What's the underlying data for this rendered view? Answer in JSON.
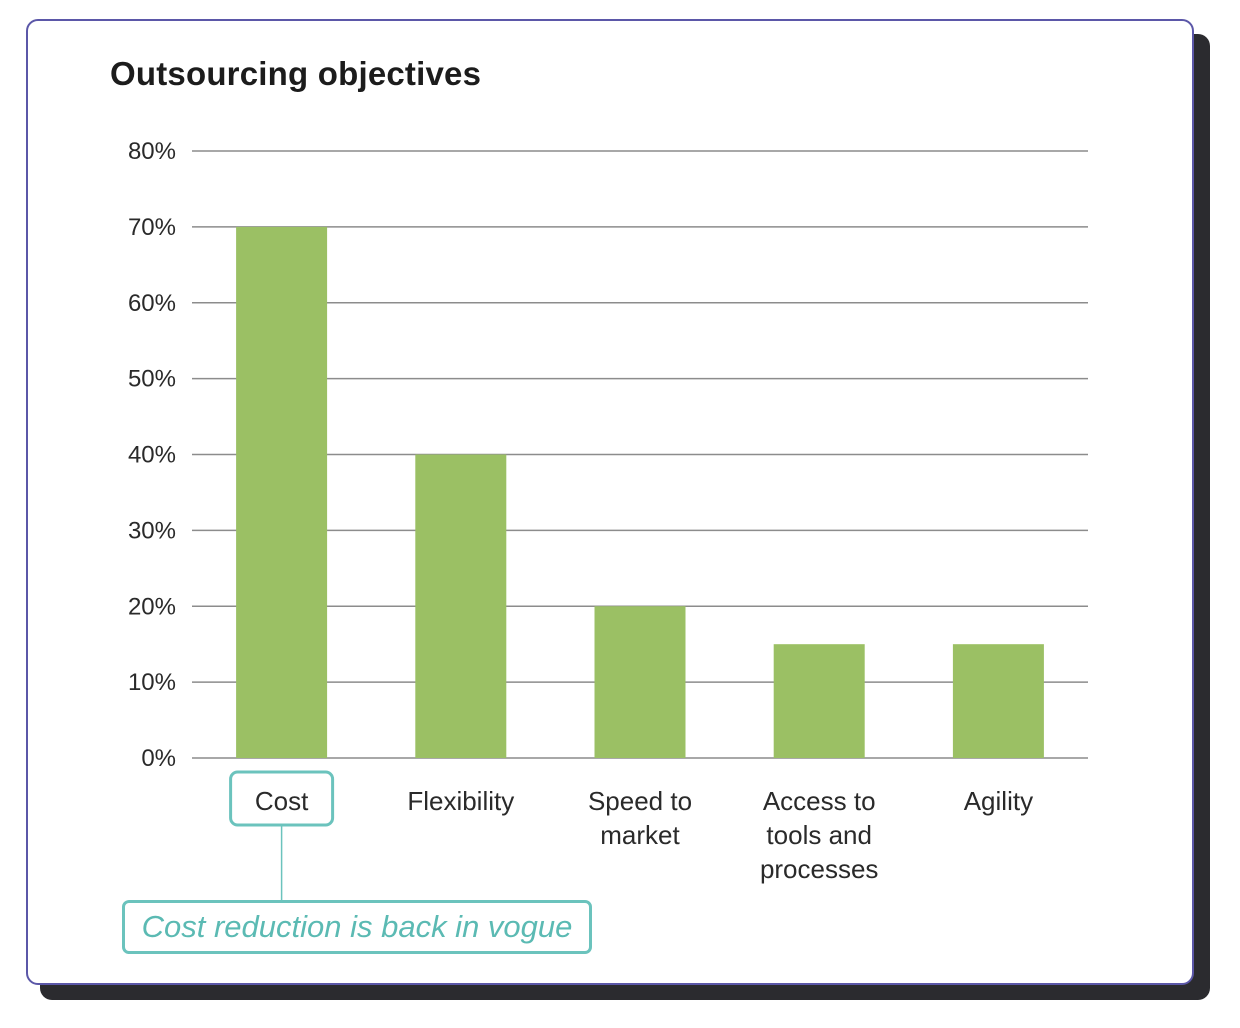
{
  "chart_data": {
    "type": "bar",
    "title": "Outsourcing objectives",
    "categories": [
      "Cost",
      "Flexibility",
      "Speed to market",
      "Access to tools and processes",
      "Agility"
    ],
    "category_lines": [
      [
        "Cost"
      ],
      [
        "Flexibility"
      ],
      [
        "Speed to",
        "market"
      ],
      [
        "Access to",
        "tools and",
        "processes"
      ],
      [
        "Agility"
      ]
    ],
    "values": [
      70,
      40,
      20,
      15,
      15
    ],
    "ylim": [
      0,
      80
    ],
    "yticks": [
      0,
      10,
      20,
      30,
      40,
      50,
      60,
      70,
      80
    ],
    "ytick_labels": [
      "0%",
      "10%",
      "20%",
      "30%",
      "40%",
      "50%",
      "60%",
      "70%",
      "80%"
    ],
    "grid": true,
    "bar_color": "#9bc064",
    "annotation": {
      "category": "Cost",
      "text": "Cost reduction is back in vogue",
      "color": "#6bc3bd"
    }
  }
}
